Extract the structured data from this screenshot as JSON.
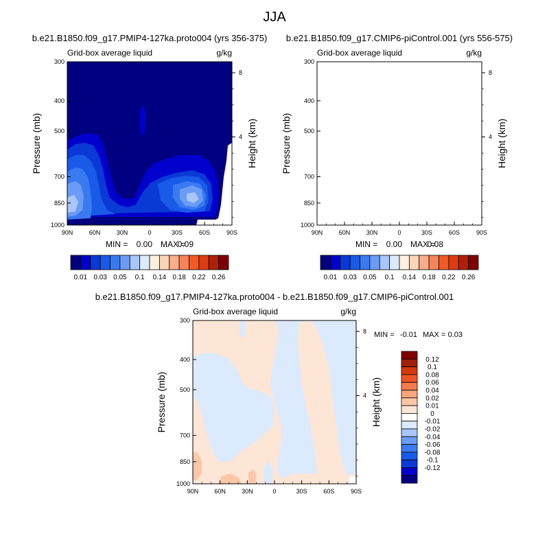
{
  "page_title": "JJA",
  "colors": {
    "abs_scale": [
      "#000080",
      "#0000cd",
      "#0a3ad6",
      "#1a5ae8",
      "#3a7af0",
      "#6b9cf5",
      "#a8c6fa",
      "#dceafd",
      "#fff0e0",
      "#fcd4b8",
      "#f9ad8a",
      "#f78459",
      "#f35a25",
      "#dc3c10",
      "#b02008",
      "#800000"
    ],
    "diff_scale": [
      "#000080",
      "#0000cd",
      "#0a3ad6",
      "#1a5ae8",
      "#3a7af0",
      "#6b9cf5",
      "#a8c6fa",
      "#dceafd",
      "#ffffff",
      "#fde6d6",
      "#fcc7a8",
      "#f9a57c",
      "#f47b4d",
      "#ee5424",
      "#d3380f",
      "#a0200a",
      "#800000"
    ]
  },
  "chart_data": [
    {
      "type": "heatmap",
      "title": "b.e21.B1850.f09_g17.PMIP4-127ka.proto004 (yrs 356-375)",
      "variable": "Grid-box average liquid",
      "units": "g/kg",
      "ylabel": "Pressure (mb)",
      "y2label": "Height (km)",
      "x_ticks": [
        "90N",
        "60N",
        "30N",
        "0",
        "30S",
        "60S",
        "90S"
      ],
      "y_ticks": [
        "300",
        "400",
        "500",
        "700",
        "850",
        "1000"
      ],
      "y2_ticks": [
        "8",
        "4"
      ],
      "stats": {
        "min_label": "MIN =",
        "min": "0.00",
        "max_label": "MAX =",
        "max": "0.09"
      },
      "colorbar_labels": [
        "0.01",
        "0.03",
        "0.05",
        "0.1",
        "0.14",
        "0.18",
        "0.22",
        "0.26"
      ]
    },
    {
      "type": "heatmap",
      "title": "b.e21.B1850.f09_g17.CMIP6-piControl.001 (yrs 556-575)",
      "variable": "Grid-box average liquid",
      "units": "g/kg",
      "ylabel": "Pressure (mb)",
      "y2label": "Height (km)",
      "x_ticks": [
        "90N",
        "60N",
        "30N",
        "0",
        "30S",
        "60S",
        "90S"
      ],
      "y_ticks": [
        "300",
        "400",
        "500",
        "700",
        "850",
        "1000"
      ],
      "y2_ticks": [
        "8",
        "4"
      ],
      "stats": {
        "min_label": "MIN =",
        "min": "0.00",
        "max_label": "MAX =",
        "max": "0.08"
      },
      "colorbar_labels": [
        "0.01",
        "0.03",
        "0.05",
        "0.1",
        "0.14",
        "0.18",
        "0.22",
        "0.26"
      ]
    },
    {
      "type": "heatmap",
      "title": "b.e21.B1850.f09_g17.PMIP4-127ka.proto004 - b.e21.B1850.f09_g17.CMIP6-piControl.001",
      "variable": "Grid-box average liquid",
      "units": "g/kg",
      "ylabel": "Pressure (mb)",
      "y2label": "Height (km)",
      "x_ticks": [
        "90N",
        "60N",
        "30N",
        "0",
        "30S",
        "60S",
        "90S"
      ],
      "y_ticks": [
        "300",
        "400",
        "500",
        "700",
        "850",
        "1000"
      ],
      "y2_ticks": [
        "8",
        "4"
      ],
      "stats": {
        "min_label": "MIN =",
        "min": "-0.01",
        "max_label": "MAX =",
        "max": "0.03"
      },
      "colorbar_labels": [
        "0.12",
        "0.1",
        "0.08",
        "0.06",
        "0.04",
        "0.02",
        "0.01",
        "0",
        "-0.01",
        "-0.02",
        "-0.04",
        "-0.06",
        "-0.08",
        "-0.1",
        "-0.12"
      ]
    }
  ]
}
